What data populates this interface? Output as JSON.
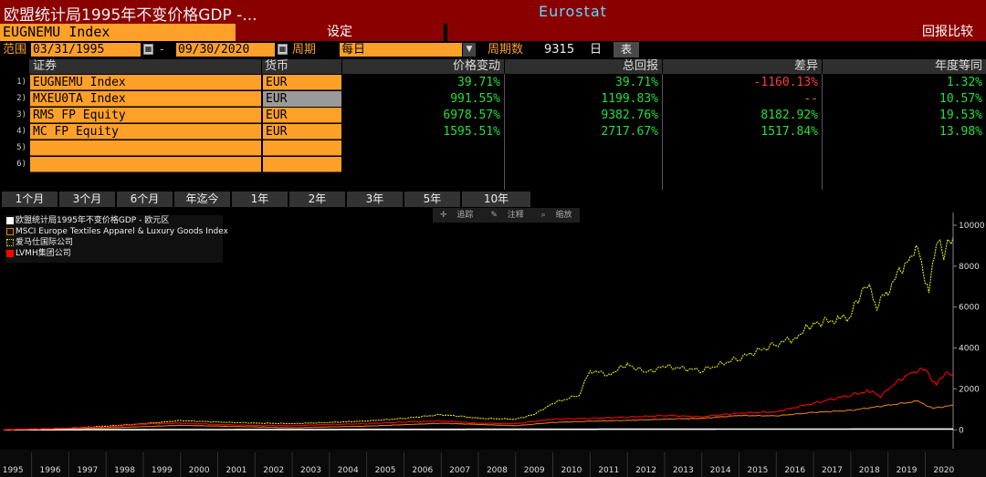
{
  "header": {
    "title": "欧盟统计局1995年不变价格GDP -...",
    "source": "Eurostat",
    "security": "EUGNEMU  Index",
    "settings_label": "设定",
    "compare_label": "回报比较"
  },
  "controls": {
    "range_label": "范围",
    "start_date": "03/31/1995",
    "dash": "-",
    "end_date": "09/30/2020",
    "period_label": "周期",
    "period_value": "每日",
    "period_count_label": "周期数",
    "period_count_value": "9315",
    "period_unit": "日",
    "table_button": "表"
  },
  "table": {
    "headers": {
      "security": "证券",
      "currency": "货币",
      "price_change": "价格变动",
      "total_return": "总回报",
      "difference": "差异",
      "annual_eq": "年度等同"
    },
    "rows": [
      {
        "n": "1)",
        "security": "EUGNEMU  Index",
        "currency": "EUR",
        "price_change": "39.71%",
        "total_return": "39.71%",
        "difference": "-1160.13%",
        "annual_eq": "1.32%"
      },
      {
        "n": "2)",
        "security": "MXEU0TA Index",
        "currency": "EUR",
        "price_change": "991.55%",
        "total_return": "1199.83%",
        "difference": "--",
        "annual_eq": "10.57%"
      },
      {
        "n": "3)",
        "security": "RMS FP Equity",
        "currency": "EUR",
        "price_change": "6978.57%",
        "total_return": "9382.76%",
        "difference": "8182.92%",
        "annual_eq": "19.53%"
      },
      {
        "n": "4)",
        "security": "MC FP Equity",
        "currency": "EUR",
        "price_change": "1595.51%",
        "total_return": "2717.67%",
        "difference": "1517.84%",
        "annual_eq": "13.98%"
      },
      {
        "n": "5)",
        "security": "",
        "currency": "",
        "price_change": "",
        "total_return": "",
        "difference": "",
        "annual_eq": ""
      },
      {
        "n": "6)",
        "security": "",
        "currency": "",
        "price_change": "",
        "total_return": "",
        "difference": "",
        "annual_eq": ""
      }
    ]
  },
  "tabs": [
    "1个月",
    "3个月",
    "6个月",
    "年迄今",
    "1年",
    "2年",
    "3年",
    "5年",
    "10年"
  ],
  "toolbar": {
    "track": "追踪",
    "annotate": "注释",
    "zoom": "缩放",
    "track_icon": "crosshair-icon",
    "annotate_icon": "pencil-icon",
    "zoom_icon": "magnifier-icon"
  },
  "colors": {
    "accent_orange": "#ffa028",
    "header_red": "#8a0000",
    "positive": "#22e03a",
    "negative": "#ff3b3b",
    "series_gdp": "#ffffff",
    "series_msci": "#e07a10",
    "series_rms": "#e6e600",
    "series_lvmh": "#ff0000"
  },
  "chart_data": {
    "type": "line",
    "legend_position": "top-left",
    "grid": false,
    "x_ticks": [
      "1995",
      "1996",
      "1997",
      "1998",
      "1999",
      "2000",
      "2001",
      "2002",
      "2003",
      "2004",
      "2005",
      "2006",
      "2007",
      "2008",
      "2009",
      "2010",
      "2011",
      "2012",
      "2013",
      "2014",
      "2015",
      "2016",
      "2017",
      "2018",
      "2019",
      "2020"
    ],
    "y_ticks": [
      "0",
      "2000",
      "4000",
      "6000",
      "8000",
      "10000"
    ],
    "xlim": [
      1995.25,
      2020.75
    ],
    "ylim": [
      -300,
      10400
    ],
    "series": [
      {
        "name": "欧盟统计局1995年不变价格GDP - 欧元区",
        "color": "#ffffff",
        "x": [
          1995.25,
          2000,
          2005,
          2010,
          2015,
          2020.75
        ],
        "y": [
          0,
          12,
          20,
          26,
          33,
          40
        ]
      },
      {
        "name": "MSCI Europe Textiles Apparel & Luxury Goods Index",
        "color": "#e07a10",
        "x": [
          1995.25,
          1997,
          1998.5,
          2000,
          2001,
          2002.5,
          2003,
          2005,
          2007,
          2008.2,
          2009,
          2010,
          2011,
          2012,
          2013,
          2014,
          2015,
          2016,
          2017,
          2018,
          2019,
          2019.8,
          2020.2,
          2020.75
        ],
        "y": [
          0,
          60,
          120,
          220,
          180,
          120,
          100,
          180,
          320,
          250,
          200,
          360,
          420,
          460,
          520,
          560,
          700,
          680,
          850,
          950,
          1200,
          1400,
          1050,
          1200
        ]
      },
      {
        "name": "爱马仕国际公司",
        "color": "#e6e600",
        "x": [
          1995.25,
          1997,
          1998,
          1999,
          2000,
          2001,
          2002,
          2003,
          2004,
          2005,
          2006,
          2007,
          2007.6,
          2008,
          2009,
          2009.5,
          2010,
          2010.7,
          2011,
          2011.5,
          2012,
          2012.5,
          2013,
          2014,
          2015,
          2016,
          2016.5,
          2017,
          2017.7,
          2018,
          2018.4,
          2018.7,
          2019,
          2019.5,
          2019.8,
          2020.1,
          2020.3,
          2020.5,
          2020.75
        ],
        "y": [
          0,
          80,
          180,
          300,
          450,
          380,
          330,
          300,
          360,
          430,
          560,
          740,
          650,
          560,
          520,
          750,
          1300,
          1700,
          2900,
          2700,
          3200,
          2800,
          3100,
          2900,
          3500,
          4200,
          4500,
          5200,
          5400,
          5600,
          7200,
          6100,
          6800,
          8300,
          8900,
          6700,
          9200,
          8600,
          9400
        ]
      },
      {
        "name": "LVMH集团公司",
        "color": "#ff0000",
        "x": [
          1995.25,
          1997,
          1998,
          1999,
          2000,
          2001,
          2002,
          2003,
          2004,
          2005,
          2006,
          2007,
          2008,
          2009,
          2010,
          2011,
          2012,
          2013,
          2014,
          2015,
          2016,
          2017,
          2018,
          2018.5,
          2018.8,
          2019,
          2019.6,
          2020,
          2020.3,
          2020.5,
          2020.75
        ],
        "y": [
          0,
          90,
          140,
          280,
          330,
          260,
          210,
          200,
          260,
          300,
          380,
          440,
          320,
          300,
          520,
          560,
          620,
          700,
          640,
          820,
          880,
          1300,
          1700,
          1900,
          1650,
          2000,
          2800,
          2950,
          2200,
          2700,
          2750
        ]
      }
    ]
  }
}
